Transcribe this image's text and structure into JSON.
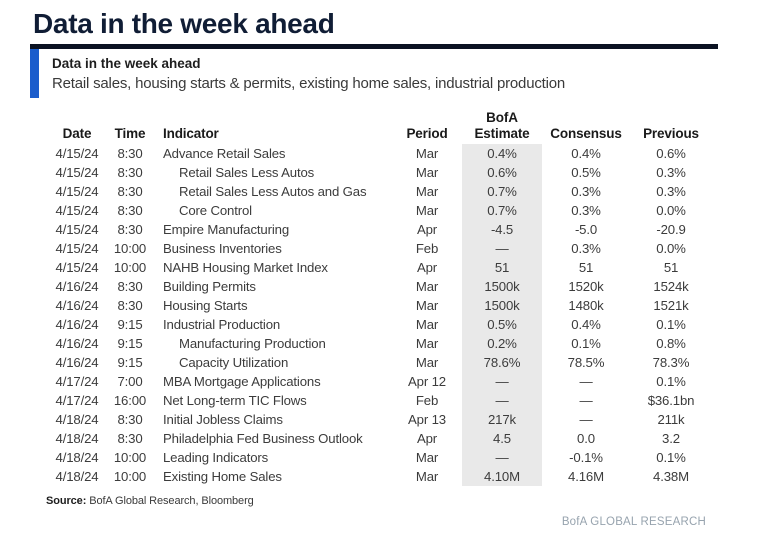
{
  "page_title": "Data in the week ahead",
  "exhibit": {
    "heading": "Data in the week ahead",
    "subtitle": "Retail sales, housing starts & permits, existing home sales, industrial production"
  },
  "table": {
    "headers": {
      "date": "Date",
      "time": "Time",
      "indicator": "Indicator",
      "period": "Period",
      "estimate_line1": "BofA",
      "estimate_line2": "Estimate",
      "consensus": "Consensus",
      "previous": "Previous"
    },
    "rows": [
      {
        "date": "4/15/24",
        "time": "8:30",
        "indicator": "Advance Retail Sales",
        "indent": false,
        "period": "Mar",
        "estimate": "0.4%",
        "consensus": "0.4%",
        "previous": "0.6%"
      },
      {
        "date": "4/15/24",
        "time": "8:30",
        "indicator": "Retail Sales Less Autos",
        "indent": true,
        "period": "Mar",
        "estimate": "0.6%",
        "consensus": "0.5%",
        "previous": "0.3%"
      },
      {
        "date": "4/15/24",
        "time": "8:30",
        "indicator": "Retail Sales Less Autos and Gas",
        "indent": true,
        "period": "Mar",
        "estimate": "0.7%",
        "consensus": "0.3%",
        "previous": "0.3%"
      },
      {
        "date": "4/15/24",
        "time": "8:30",
        "indicator": "Core Control",
        "indent": true,
        "period": "Mar",
        "estimate": "0.7%",
        "consensus": "0.3%",
        "previous": "0.0%"
      },
      {
        "date": "4/15/24",
        "time": "8:30",
        "indicator": "Empire Manufacturing",
        "indent": false,
        "period": "Apr",
        "estimate": "-4.5",
        "consensus": "-5.0",
        "previous": "-20.9"
      },
      {
        "date": "4/15/24",
        "time": "10:00",
        "indicator": "Business Inventories",
        "indent": false,
        "period": "Feb",
        "estimate": "—",
        "consensus": "0.3%",
        "previous": "0.0%"
      },
      {
        "date": "4/15/24",
        "time": "10:00",
        "indicator": "NAHB Housing Market Index",
        "indent": false,
        "period": "Apr",
        "estimate": "51",
        "consensus": "51",
        "previous": "51"
      },
      {
        "date": "4/16/24",
        "time": "8:30",
        "indicator": "Building Permits",
        "indent": false,
        "period": "Mar",
        "estimate": "1500k",
        "consensus": "1520k",
        "previous": "1524k"
      },
      {
        "date": "4/16/24",
        "time": "8:30",
        "indicator": "Housing Starts",
        "indent": false,
        "period": "Mar",
        "estimate": "1500k",
        "consensus": "1480k",
        "previous": "1521k"
      },
      {
        "date": "4/16/24",
        "time": "9:15",
        "indicator": "Industrial Production",
        "indent": false,
        "period": "Mar",
        "estimate": "0.5%",
        "consensus": "0.4%",
        "previous": "0.1%"
      },
      {
        "date": "4/16/24",
        "time": "9:15",
        "indicator": "Manufacturing Production",
        "indent": true,
        "period": "Mar",
        "estimate": "0.2%",
        "consensus": "0.1%",
        "previous": "0.8%"
      },
      {
        "date": "4/16/24",
        "time": "9:15",
        "indicator": "Capacity Utilization",
        "indent": true,
        "period": "Mar",
        "estimate": "78.6%",
        "consensus": "78.5%",
        "previous": "78.3%"
      },
      {
        "date": "4/17/24",
        "time": "7:00",
        "indicator": "MBA Mortgage Applications",
        "indent": false,
        "period": "Apr 12",
        "estimate": "—",
        "consensus": "—",
        "previous": "0.1%"
      },
      {
        "date": "4/17/24",
        "time": "16:00",
        "indicator": "Net Long-term TIC Flows",
        "indent": false,
        "period": "Feb",
        "estimate": "—",
        "consensus": "—",
        "previous": "$36.1bn"
      },
      {
        "date": "4/18/24",
        "time": "8:30",
        "indicator": "Initial Jobless Claims",
        "indent": false,
        "period": "Apr 13",
        "estimate": "217k",
        "consensus": "—",
        "previous": "211k"
      },
      {
        "date": "4/18/24",
        "time": "8:30",
        "indicator": "Philadelphia Fed Business Outlook",
        "indent": false,
        "period": "Apr",
        "estimate": "4.5",
        "consensus": "0.0",
        "previous": "3.2"
      },
      {
        "date": "4/18/24",
        "time": "10:00",
        "indicator": "Leading Indicators",
        "indent": false,
        "period": "Mar",
        "estimate": "—",
        "consensus": "-0.1%",
        "previous": "0.1%"
      },
      {
        "date": "4/18/24",
        "time": "10:00",
        "indicator": "Existing Home Sales",
        "indent": false,
        "period": "Mar",
        "estimate": "4.10M",
        "consensus": "4.16M",
        "previous": "4.38M"
      }
    ]
  },
  "footer": {
    "source_label": "Source:",
    "source_text": " BofA Global Research, Bloomberg",
    "brand": "BofA GLOBAL RESEARCH"
  },
  "colors": {
    "accent_blue": "#1b5dcc",
    "title_navy": "#101d35",
    "rule_navy": "#0b1222",
    "estimate_shade": "#e9e9e9",
    "brand_gray": "#97a3ae"
  }
}
